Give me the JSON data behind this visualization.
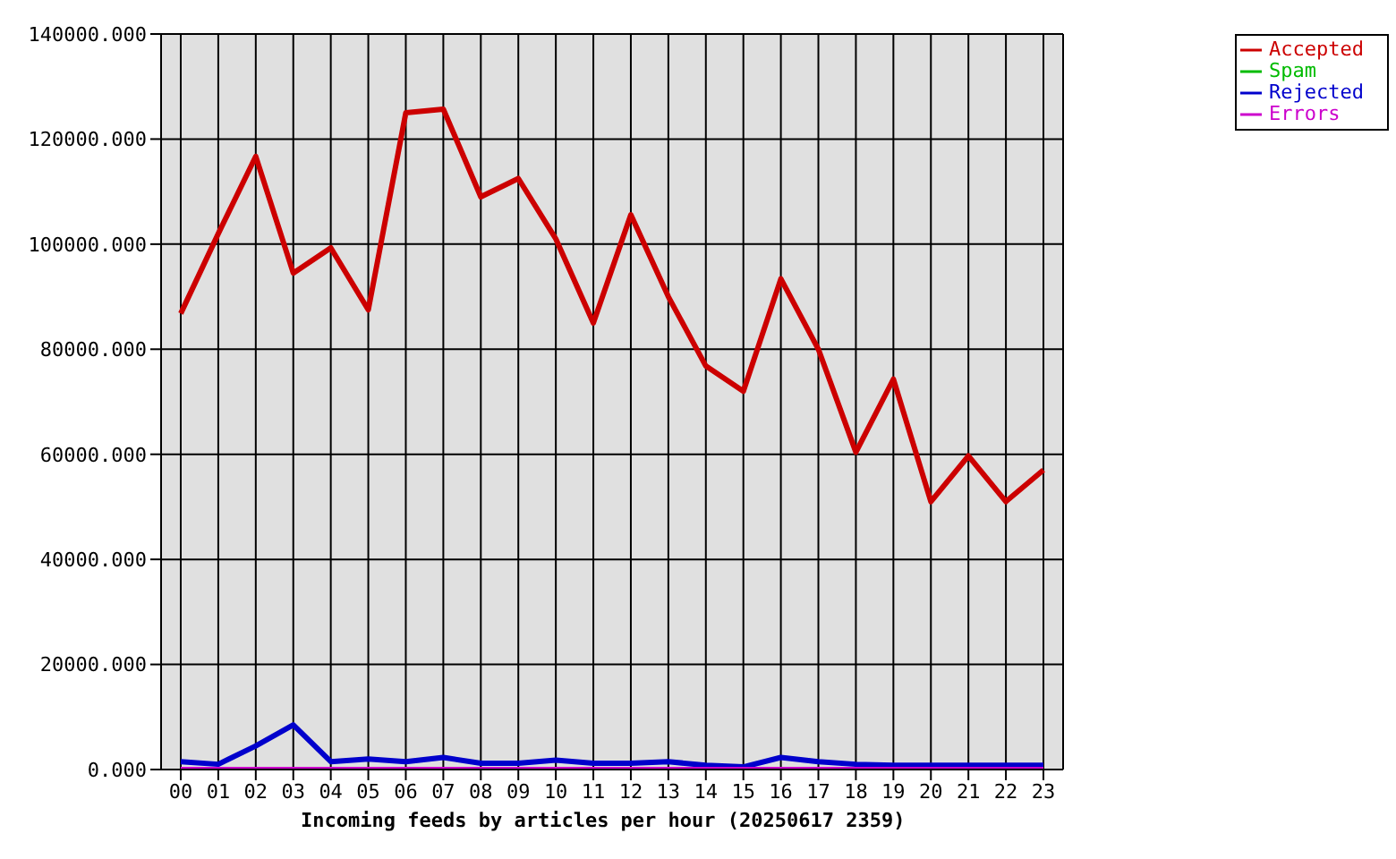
{
  "chart_data": {
    "type": "line",
    "xlabel": "Incoming feeds by articles per hour (20250617 2359)",
    "categories": [
      "00",
      "01",
      "02",
      "03",
      "04",
      "05",
      "06",
      "07",
      "08",
      "09",
      "10",
      "11",
      "12",
      "13",
      "14",
      "15",
      "16",
      "17",
      "18",
      "19",
      "20",
      "21",
      "22",
      "23"
    ],
    "series": [
      {
        "name": "Accepted",
        "color": "#cc0000",
        "values": [
          86800,
          102000,
          116700,
          94500,
          99300,
          87500,
          125000,
          125700,
          109000,
          112500,
          101000,
          85000,
          105600,
          90000,
          76800,
          72000,
          93400,
          80000,
          60400,
          74300,
          51000,
          59700,
          51000,
          57000
        ]
      },
      {
        "name": "Spam",
        "color": "#00bb00",
        "values": [
          null,
          null,
          null,
          null,
          null,
          null,
          null,
          null,
          null,
          null,
          null,
          null,
          null,
          null,
          null,
          null,
          null,
          null,
          null,
          null,
          null,
          null,
          null,
          null
        ]
      },
      {
        "name": "Rejected",
        "color": "#0000cc",
        "values": [
          1500,
          1000,
          4500,
          8500,
          1500,
          2000,
          1500,
          2300,
          1200,
          1200,
          1800,
          1200,
          1200,
          1500,
          800,
          500,
          2300,
          1500,
          1000,
          800,
          800,
          800,
          800,
          800
        ]
      },
      {
        "name": "Errors",
        "color": "#cc00cc",
        "values": [
          0,
          0,
          0,
          0,
          0,
          0,
          0,
          0,
          0,
          0,
          0,
          0,
          0,
          0,
          0,
          0,
          0,
          0,
          0,
          0,
          0,
          0,
          0,
          0
        ]
      }
    ],
    "ylim": [
      0,
      140000
    ],
    "yticks": [
      {
        "value": 0,
        "label": "0.000"
      },
      {
        "value": 20000,
        "label": "20000.000"
      },
      {
        "value": 40000,
        "label": "40000.000"
      },
      {
        "value": 60000,
        "label": "60000.000"
      },
      {
        "value": 80000,
        "label": "80000.000"
      },
      {
        "value": 100000,
        "label": "100000.000"
      },
      {
        "value": 120000,
        "label": "120000.000"
      },
      {
        "value": 140000,
        "label": "140000.000"
      }
    ],
    "grid": true,
    "legend": "top right"
  }
}
